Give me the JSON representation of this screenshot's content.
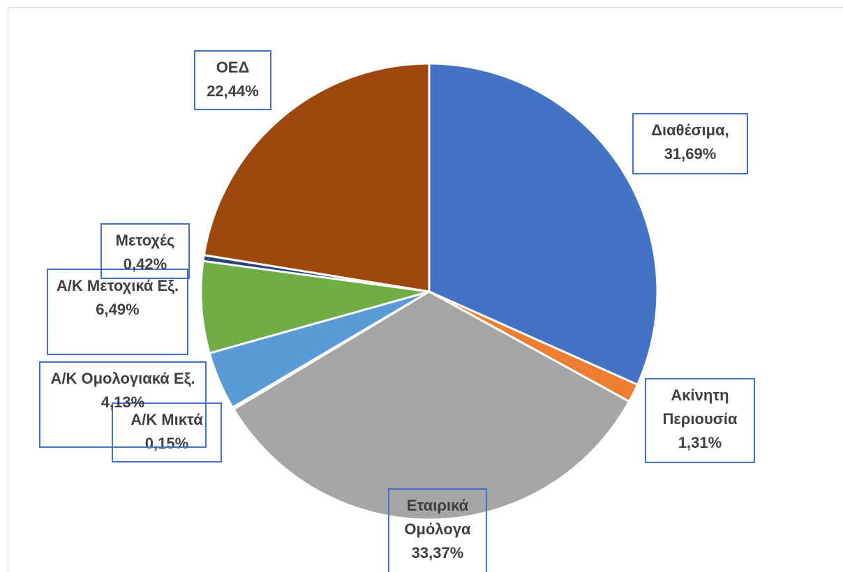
{
  "chart_data": {
    "type": "pie",
    "categories": [
      "Διαθέσιμα,",
      "Ακίνητη Περιουσία",
      "Εταιρικά Ομόλογα",
      "Α/Κ Μικτά",
      "Α/Κ Ομολογιακά Εξ.",
      "Α/Κ Μετοχικά Εξ.",
      "Μετοχές",
      "ΟΕΔ"
    ],
    "values": [
      31.69,
      1.31,
      33.37,
      0.15,
      4.13,
      6.49,
      0.42,
      22.44
    ],
    "value_labels": [
      "31,69%",
      "1,31%",
      "33,37%",
      "0,15%",
      "4,13%",
      "6,49%",
      "0,42%",
      "22,44%"
    ],
    "colors": [
      "#4472c4",
      "#ed7d31",
      "#a5a5a5",
      "#ffc000",
      "#5b9bd5",
      "#70ad47",
      "#264478",
      "#9e480e"
    ]
  }
}
